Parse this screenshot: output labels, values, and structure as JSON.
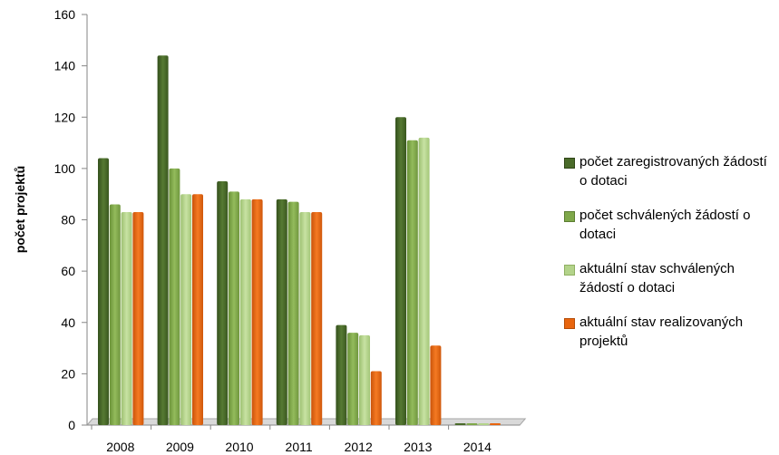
{
  "chart_data": {
    "type": "bar",
    "ylabel": "počet projektů",
    "xlabel": "",
    "ylim": [
      0,
      160
    ],
    "yticks": [
      0,
      20,
      40,
      60,
      80,
      100,
      120,
      140,
      160
    ],
    "categories": [
      "2008",
      "2009",
      "2010",
      "2011",
      "2012",
      "2013",
      "2014"
    ],
    "series": [
      {
        "name": "počet zaregistrovaných žádostí o dotaci",
        "color": "#4a6b2a",
        "values": [
          104,
          144,
          95,
          88,
          39,
          120,
          0
        ]
      },
      {
        "name": "počet schválených žádostí o dotaci",
        "color": "#7fa84a",
        "values": [
          86,
          100,
          91,
          87,
          36,
          111,
          0
        ]
      },
      {
        "name": "aktuální stav schválených žádostí o dotaci",
        "color": "#b3d38a",
        "values": [
          83,
          90,
          88,
          83,
          35,
          112,
          0
        ]
      },
      {
        "name": "aktuální stav realizovaných projektů",
        "color": "#e8650e",
        "values": [
          83,
          90,
          88,
          83,
          21,
          31,
          0
        ]
      }
    ],
    "legend_position": "right",
    "grid": false
  }
}
